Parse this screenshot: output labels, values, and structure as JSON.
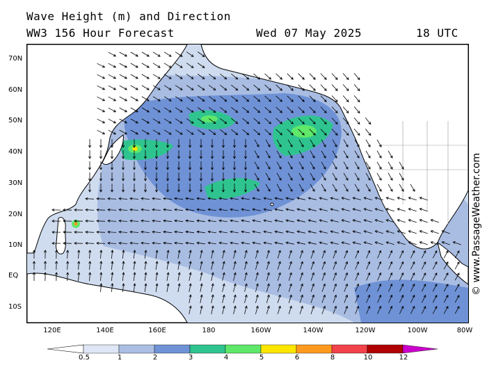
{
  "header": {
    "line1": "Wave Height (m) and Direction",
    "line2": "WW3 156 Hour Forecast",
    "date": "Wed 07 May 2025",
    "time": "18 UTC"
  },
  "axes": {
    "lat_labels": [
      "70N",
      "60N",
      "50N",
      "40N",
      "30N",
      "20N",
      "10N",
      "EQ",
      "10S"
    ],
    "lon_labels": [
      "120E",
      "140E",
      "160E",
      "180",
      "160W",
      "140W",
      "120W",
      "100W",
      "80W"
    ]
  },
  "watermark": "© www.PassageWeather.com",
  "legend": {
    "labels": [
      "0.5",
      "1",
      "2",
      "3",
      "4",
      "5",
      "6",
      "8",
      "10",
      "12"
    ],
    "colors": [
      "#dfe6f5",
      "#aabfe3",
      "#6f92d6",
      "#2fc48f",
      "#5fe86a",
      "#ffe600",
      "#ff9a1e",
      "#f2424a",
      "#b00000",
      "#cc00cc"
    ]
  },
  "colors": {
    "land": "#ffffff",
    "wave_1": "#cfdcef",
    "wave_2": "#a9bde3",
    "wave_3": "#6f92d6",
    "wave_4": "#2fc48f",
    "wave_5": "#5fe86a"
  }
}
